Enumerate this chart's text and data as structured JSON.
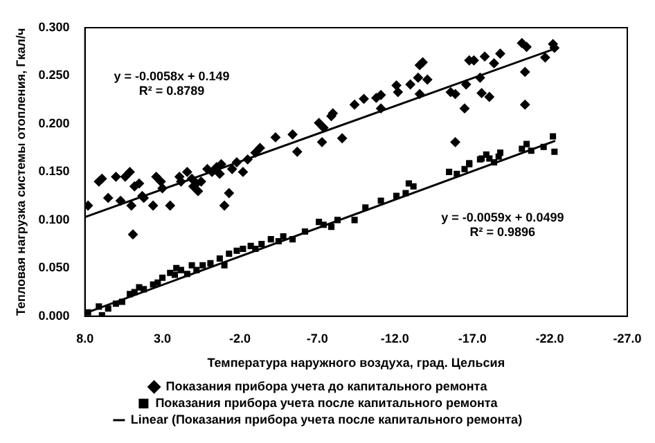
{
  "chart_data": {
    "type": "scatter",
    "xlabel": "Температура наружного воздуха, град. Цельсия",
    "ylabel": "Тепловая нагрузка системы отопления, Гкал/ч",
    "xlim": [
      8,
      -27
    ],
    "xticks": [
      {
        "value": 8,
        "label": "8.0"
      },
      {
        "value": 3,
        "label": "3.0"
      },
      {
        "value": -2,
        "label": "-2.0"
      },
      {
        "value": -7,
        "label": "-7.0"
      },
      {
        "value": -12,
        "label": "-12.0"
      },
      {
        "value": -17,
        "label": "-17.0"
      },
      {
        "value": -22,
        "label": "-22.0"
      },
      {
        "value": -27,
        "label": "-27.0"
      }
    ],
    "ylim": [
      0,
      0.3
    ],
    "yticks": [
      {
        "value": 0,
        "label": "0.000"
      },
      {
        "value": 0.05,
        "label": "0.050"
      },
      {
        "value": 0.1,
        "label": "0.100"
      },
      {
        "value": 0.15,
        "label": "0.150"
      },
      {
        "value": 0.2,
        "label": "0.200"
      },
      {
        "value": 0.25,
        "label": "0.250"
      },
      {
        "value": 0.3,
        "label": "0.300"
      }
    ],
    "grid": false,
    "legend": "bottom",
    "series": [
      {
        "name": "Показания прибора учета до капитального ремонта",
        "marker": "diamond",
        "color": "#000000",
        "x": [
          7.8,
          7.1,
          6.9,
          6.5,
          6.0,
          5.7,
          5.4,
          5.1,
          5.0,
          4.9,
          4.8,
          4.5,
          4.3,
          4.2,
          3.6,
          3.4,
          3.1,
          3.0,
          2.5,
          1.9,
          1.8,
          1.4,
          1.1,
          1.0,
          0.8,
          0.7,
          0.5,
          0.1,
          -0.2,
          -0.5,
          -0.7,
          -0.8,
          -1.0,
          -1.3,
          -1.5,
          -1.8,
          -2.2,
          -2.5,
          -3.0,
          -3.3,
          -4.3,
          -5.4,
          -5.7,
          -7.1,
          -7.3,
          -7.4,
          -7.9,
          -8.0,
          -8.6,
          -9.4,
          -10.0,
          -10.8,
          -11.1,
          -11.1,
          -12.1,
          -12.2,
          -13.0,
          -13.5,
          -13.6,
          -13.8,
          -14.1,
          -13.6,
          -15.6,
          -15.9,
          -15.9,
          -16.5,
          -16.6,
          -16.8,
          -17.1,
          -17.6,
          -17.8,
          -17.5,
          -18.1,
          -18.4,
          -18.8,
          -20.2,
          -20.5,
          -20.4,
          -20.4,
          -21.7,
          -22.2,
          -22.3
        ],
        "values": [
          0.115,
          0.14,
          0.143,
          0.123,
          0.145,
          0.12,
          0.145,
          0.15,
          0.115,
          0.085,
          0.135,
          0.138,
          0.125,
          0.123,
          0.115,
          0.145,
          0.14,
          0.133,
          0.115,
          0.145,
          0.14,
          0.15,
          0.143,
          0.135,
          0.138,
          0.13,
          0.14,
          0.153,
          0.15,
          0.155,
          0.148,
          0.158,
          0.115,
          0.128,
          0.153,
          0.16,
          0.15,
          0.163,
          0.17,
          0.175,
          0.186,
          0.189,
          0.171,
          0.201,
          0.181,
          0.196,
          0.208,
          0.211,
          0.185,
          0.22,
          0.226,
          0.227,
          0.23,
          0.216,
          0.24,
          0.233,
          0.241,
          0.248,
          0.261,
          0.264,
          0.246,
          0.231,
          0.233,
          0.231,
          0.181,
          0.216,
          0.241,
          0.266,
          0.266,
          0.232,
          0.27,
          0.248,
          0.228,
          0.263,
          0.273,
          0.284,
          0.28,
          0.254,
          0.22,
          0.269,
          0.283,
          0.279
        ]
      },
      {
        "name": "Показания прибора учета после капитального ремонта",
        "marker": "square",
        "color": "#000000",
        "x": [
          7.8,
          7.1,
          6.9,
          6.5,
          6.0,
          5.6,
          5.1,
          4.8,
          4.5,
          4.2,
          3.6,
          3.3,
          3.0,
          2.5,
          2.2,
          2.1,
          1.8,
          1.4,
          1.1,
          0.8,
          0.4,
          -0.1,
          -0.7,
          -1.0,
          -1.3,
          -1.8,
          -2.2,
          -2.7,
          -3.0,
          -3.4,
          -4.0,
          -4.5,
          -4.8,
          -5.4,
          -6.2,
          -7.1,
          -7.4,
          -7.9,
          -8.3,
          -9.4,
          -10.1,
          -11.1,
          -12.1,
          -12.7,
          -12.9,
          -13.2,
          -15.5,
          -16.0,
          -16.5,
          -16.8,
          -17.5,
          -17.9,
          -18.4,
          -18.8,
          -16.8,
          -17.6,
          -18.1,
          -18.7,
          -20.2,
          -20.5,
          -20.8,
          -21.6,
          -22.2,
          -22.3
        ],
        "values": [
          0.004,
          0.01,
          0.001,
          0.008,
          0.013,
          0.015,
          0.023,
          0.025,
          0.03,
          0.028,
          0.033,
          0.035,
          0.04,
          0.045,
          0.043,
          0.05,
          0.048,
          0.044,
          0.053,
          0.048,
          0.053,
          0.055,
          0.06,
          0.053,
          0.065,
          0.068,
          0.07,
          0.073,
          0.07,
          0.075,
          0.08,
          0.078,
          0.083,
          0.08,
          0.088,
          0.098,
          0.095,
          0.093,
          0.1,
          0.1,
          0.113,
          0.12,
          0.125,
          0.128,
          0.138,
          0.135,
          0.15,
          0.148,
          0.153,
          0.158,
          0.163,
          0.168,
          0.16,
          0.17,
          0.159,
          0.164,
          0.164,
          0.166,
          0.174,
          0.179,
          0.172,
          0.176,
          0.187,
          0.171
        ]
      },
      {
        "type": "line",
        "marker": "none",
        "line_style": "solid",
        "color": "#000000",
        "x": [
          8,
          -22.3
        ],
        "values": [
          0.103,
          0.278
        ]
      },
      {
        "name": "Linear (Показания прибора учета после капитального ремонта)",
        "type": "line",
        "marker": "none",
        "line_style": "solid",
        "color": "#000000",
        "x": [
          8,
          -22.3
        ],
        "values": [
          0.003,
          0.182
        ]
      }
    ],
    "annotations": [
      "y = -0.0058x + 0.149",
      "R² = 0.8789",
      "y = -0.0059x + 0.0499",
      "R² = 0.9896"
    ]
  }
}
